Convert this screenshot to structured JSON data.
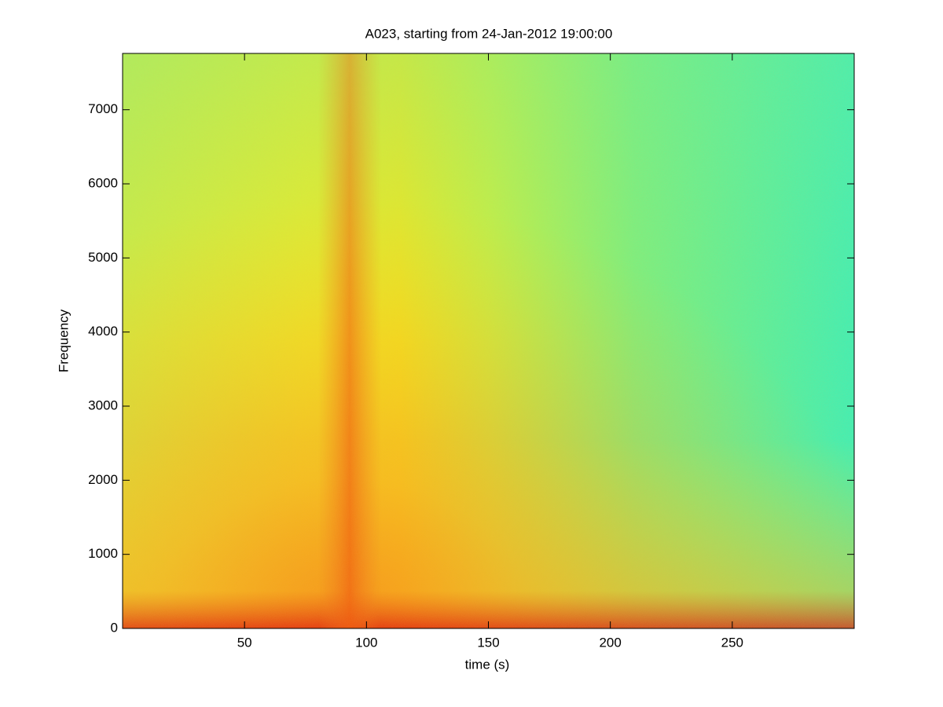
{
  "chart_data": {
    "type": "spectrogram",
    "title": "A023, starting from 24-Jan-2012 19:00:00",
    "x_label": "time (s)",
    "y_label": "Frequency",
    "xlim": [
      0,
      300
    ],
    "xticks": [
      50,
      100,
      150,
      200,
      250
    ],
    "ylim": [
      0,
      7760
    ],
    "yticks": [
      0,
      1000,
      2000,
      3000,
      4000,
      5000,
      6000,
      7000
    ]
  }
}
